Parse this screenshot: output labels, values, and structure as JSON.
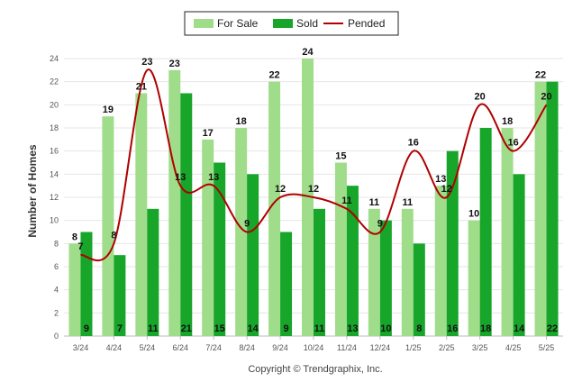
{
  "chart_data": {
    "type": "bar",
    "categories": [
      "3/24",
      "4/24",
      "5/24",
      "6/24",
      "7/24",
      "8/24",
      "9/24",
      "10/24",
      "11/24",
      "12/24",
      "1/25",
      "2/25",
      "3/25",
      "4/25",
      "5/25"
    ],
    "series": [
      {
        "name": "For Sale",
        "type": "bar",
        "color": "#a0dd8a",
        "values": [
          8,
          19,
          21,
          23,
          17,
          18,
          22,
          24,
          15,
          11,
          11,
          13,
          10,
          18,
          22
        ]
      },
      {
        "name": "Sold",
        "type": "bar",
        "color": "#17a52a",
        "values": [
          9,
          7,
          11,
          21,
          15,
          14,
          9,
          11,
          13,
          10,
          8,
          16,
          18,
          14,
          22
        ]
      },
      {
        "name": "Pended",
        "type": "line",
        "color": "#b00000",
        "values": [
          7,
          8,
          23,
          13,
          13,
          9,
          12,
          12,
          11,
          9,
          16,
          12,
          20,
          16,
          20
        ]
      }
    ],
    "ylabel": "Number of Homes",
    "ylim": [
      0,
      24
    ],
    "yticks": [
      0,
      2,
      4,
      6,
      8,
      10,
      12,
      14,
      16,
      18,
      20,
      22,
      24
    ],
    "grid": true,
    "legend_position": "top-center"
  },
  "footer": {
    "copyright": "Copyright © Trendgraphix, Inc."
  }
}
